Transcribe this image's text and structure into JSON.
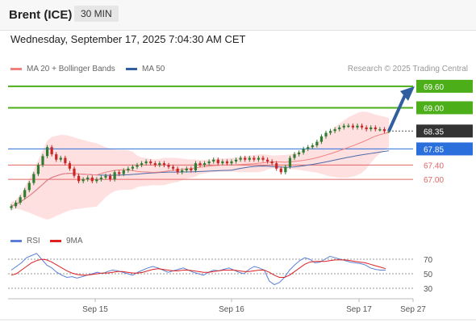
{
  "header": {
    "instrument": "Brent (ICE)",
    "timeframe": "30 MIN"
  },
  "timestamp": "Wednesday, September 17, 2025 7:04:30 AM CET",
  "legend": {
    "ma20_label": "MA 20 + Bollinger Bands",
    "ma50_label": "MA 50",
    "rsi_label": "RSI",
    "rsi_ma_label": "9MA"
  },
  "credit": "Research © 2025 Trading Central",
  "colors": {
    "up": "#2e7d32",
    "down": "#c62828",
    "ma20": "#f08080",
    "ma50": "#4a6aa8",
    "band_fill": "#ffd6d6",
    "resistance": "#4caf1a",
    "current": "#333333",
    "pivot": "#2a6fdb",
    "support": "#e06666",
    "arrow": "#2f5f9e"
  },
  "chart_data": [
    {
      "type": "candlestick",
      "x_labels": [
        "Sep 15",
        "Sep 16",
        "Sep 17",
        "Sep 27"
      ],
      "ylim": [
        66.1,
        69.8
      ],
      "levels": [
        {
          "value": 69.6,
          "label": "69.60",
          "kind": "resistance"
        },
        {
          "value": 69.0,
          "label": "69.00",
          "kind": "resistance"
        },
        {
          "value": 68.35,
          "label": "68.35",
          "kind": "current"
        },
        {
          "value": 67.85,
          "label": "67.85",
          "kind": "pivot"
        },
        {
          "value": 67.4,
          "label": "67.40",
          "kind": "support"
        },
        {
          "value": 67.0,
          "label": "67.00",
          "kind": "support"
        }
      ],
      "closes": [
        66.25,
        66.35,
        66.5,
        66.7,
        66.9,
        67.15,
        67.4,
        67.65,
        67.9,
        67.7,
        67.55,
        67.6,
        67.45,
        67.3,
        67.1,
        66.95,
        67.0,
        67.05,
        66.95,
        67.0,
        67.05,
        67.1,
        67.0,
        67.2,
        67.15,
        67.25,
        67.3,
        67.35,
        67.4,
        67.45,
        67.5,
        67.45,
        67.4,
        67.45,
        67.4,
        67.35,
        67.3,
        67.2,
        67.25,
        67.3,
        67.25,
        67.45,
        67.4,
        67.45,
        67.5,
        67.55,
        67.45,
        67.5,
        67.45,
        67.5,
        67.55,
        67.6,
        67.55,
        67.6,
        67.55,
        67.6,
        67.55,
        67.5,
        67.45,
        67.3,
        67.2,
        67.35,
        67.6,
        67.7,
        67.75,
        67.85,
        67.9,
        67.95,
        68.05,
        68.2,
        68.3,
        68.35,
        68.4,
        68.45,
        68.5,
        68.5,
        68.45,
        68.5,
        68.45,
        68.4,
        68.45,
        68.4,
        68.4,
        68.35,
        68.35
      ],
      "rsi": {
        "levels": [
          70,
          50,
          30
        ],
        "rsi": [
          55,
          60,
          65,
          72,
          75,
          78,
          70,
          62,
          58,
          52,
          48,
          45,
          46,
          44,
          46,
          48,
          50,
          52,
          50,
          53,
          55,
          54,
          52,
          50,
          48,
          52,
          55,
          58,
          60,
          58,
          55,
          52,
          54,
          56,
          58,
          55,
          52,
          50,
          48,
          52,
          55,
          54,
          56,
          58,
          55,
          52,
          50,
          56,
          60,
          58,
          55,
          40,
          35,
          38,
          45,
          55,
          62,
          68,
          72,
          70,
          65,
          66,
          70,
          74,
          72,
          70,
          68,
          66,
          65,
          64,
          62,
          58,
          56,
          55,
          55
        ],
        "ma": [
          48,
          50,
          55,
          60,
          65,
          68,
          70,
          69,
          66,
          62,
          58,
          54,
          51,
          49,
          48,
          48,
          49,
          50,
          51,
          51,
          52,
          53,
          53,
          52,
          51,
          51,
          52,
          54,
          56,
          57,
          56,
          55,
          54,
          54,
          55,
          55,
          54,
          53,
          52,
          52,
          53,
          54,
          55,
          55,
          55,
          54,
          53,
          53,
          54,
          55,
          55,
          52,
          48,
          45,
          45,
          48,
          53,
          58,
          63,
          66,
          67,
          67,
          67,
          68,
          69,
          69,
          69,
          68,
          67,
          66,
          65,
          63,
          61,
          59,
          57
        ]
      }
    }
  ]
}
